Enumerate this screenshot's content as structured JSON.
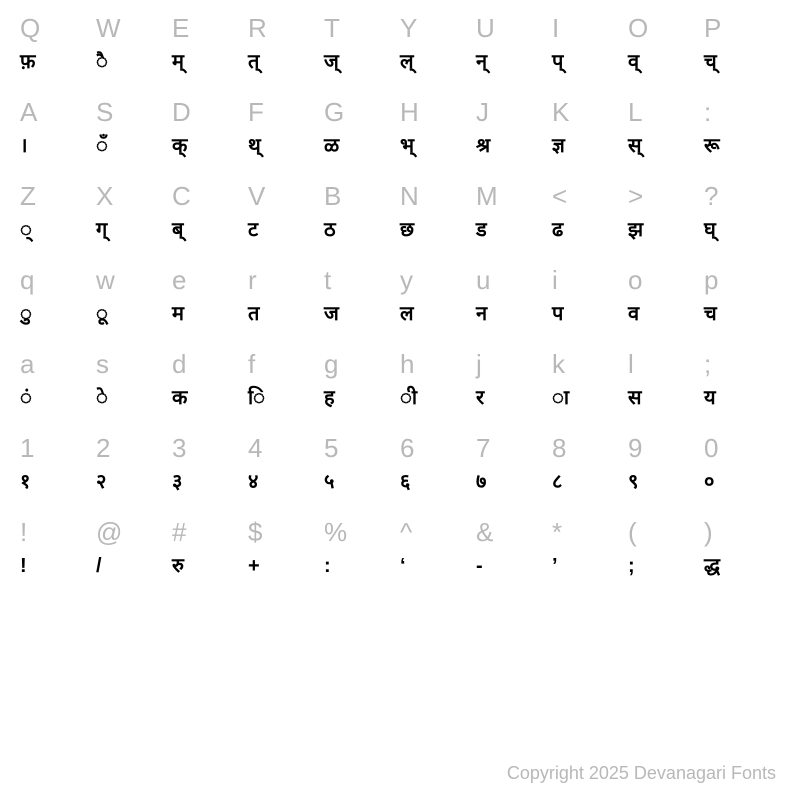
{
  "rows": [
    {
      "keys": [
        "Q",
        "W",
        "E",
        "R",
        "T",
        "Y",
        "U",
        "I",
        "O",
        "P"
      ],
      "glyphs": [
        "फ़",
        "ै",
        "म्",
        "त्",
        "ज्",
        "ल्",
        "न्",
        "प्",
        "व्",
        "च्"
      ]
    },
    {
      "keys": [
        "A",
        "S",
        "D",
        "F",
        "G",
        "H",
        "J",
        "K",
        "L",
        ":"
      ],
      "glyphs": [
        "।",
        "ँ",
        "क्",
        "थ्",
        "ळ",
        "भ्",
        "श्र",
        "ज्ञ",
        "स्",
        "रू"
      ]
    },
    {
      "keys": [
        "Z",
        "X",
        "C",
        "V",
        "B",
        "N",
        "M",
        "<",
        ">",
        "?"
      ],
      "glyphs": [
        "्",
        "ग्",
        "ब्",
        "ट",
        "ठ",
        "छ",
        "ड",
        "ढ",
        "झ",
        "घ्"
      ]
    },
    {
      "keys": [
        "q",
        "w",
        "e",
        "r",
        "t",
        "y",
        "u",
        "i",
        "o",
        "p"
      ],
      "glyphs": [
        "ु",
        "ू",
        "म",
        "त",
        "ज",
        "ल",
        "न",
        "प",
        "व",
        "च"
      ]
    },
    {
      "keys": [
        "a",
        "s",
        "d",
        "f",
        "g",
        "h",
        "j",
        "k",
        "l",
        ";"
      ],
      "glyphs": [
        "ं",
        "े",
        "क",
        "ि",
        "ह",
        "ी",
        "र",
        "ा",
        "स",
        "य"
      ]
    },
    {
      "keys": [
        "1",
        "2",
        "3",
        "4",
        "5",
        "6",
        "7",
        "8",
        "9",
        "0"
      ],
      "glyphs": [
        "१",
        "२",
        "३",
        "४",
        "५",
        "६",
        "७",
        "८",
        "९",
        "०"
      ]
    },
    {
      "keys": [
        "!",
        "@",
        "#",
        "$",
        "%",
        "^",
        "&",
        "*",
        "(",
        ")"
      ],
      "glyphs": [
        "!",
        "/",
        "रु",
        "+",
        ":",
        "‘",
        "-",
        "’",
        ";",
        "द्ध"
      ]
    }
  ],
  "footer": "Copyright 2025 Devanagari Fonts",
  "colors": {
    "key": "#b8b8b8",
    "glyph": "#000000",
    "background": "#ffffff",
    "footer": "#b8b8b8"
  },
  "typography": {
    "key_fontsize": 26,
    "glyph_fontsize": 20,
    "glyph_fontweight": 700,
    "footer_fontsize": 18
  },
  "layout": {
    "columns": 10,
    "row_pairs": 7
  }
}
